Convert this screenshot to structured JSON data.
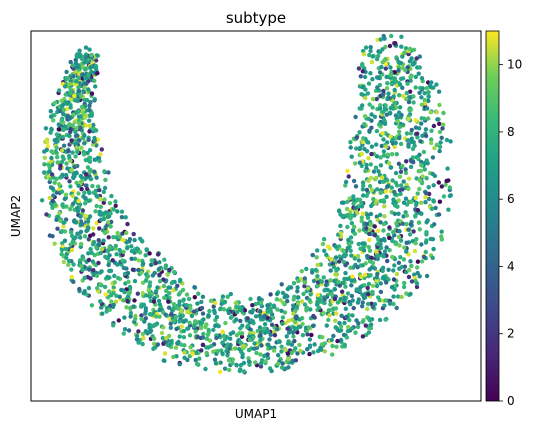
{
  "chart_data": {
    "type": "scatter",
    "title": "subtype",
    "xlabel": "UMAP1",
    "ylabel": "UMAP2",
    "x_ticks_shown": false,
    "y_ticks_shown": false,
    "grid": false,
    "colormap": "viridis",
    "color_range": [
      0,
      11
    ],
    "colorbar": {
      "location": "right",
      "ticks": [
        0,
        2,
        4,
        6,
        8,
        10
      ],
      "tick_labels": [
        "0",
        "2",
        "4",
        "6",
        "8",
        "10"
      ]
    },
    "shape_description": "U-shaped / crescent point cloud: narrow left arm rising to the top-left, wide right arm rising to the top-right, bottom center lowest",
    "approx_point_count": 2800,
    "value_distribution": "mostly 6–9 (green/teal), many 10–11 (yellow), fewer 0–4 (purple/blue)"
  }
}
